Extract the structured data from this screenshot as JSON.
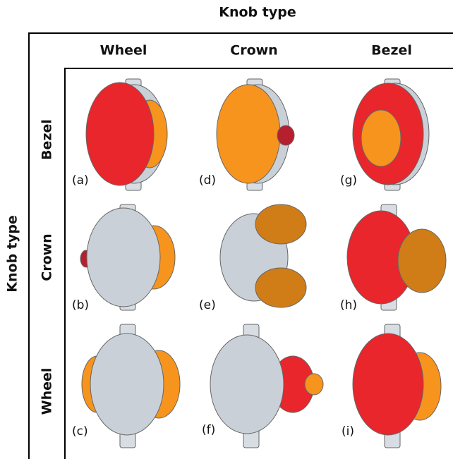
{
  "title_top": "Knob type",
  "title_left": "Knob type",
  "columns": [
    "Wheel",
    "Crown",
    "Bezel"
  ],
  "rows": [
    "Bezel",
    "Crown",
    "Wheel"
  ],
  "cells": [
    [
      "(a)",
      "(d)",
      "(g)"
    ],
    [
      "(b)",
      "(e)",
      "(h)"
    ],
    [
      "(c)",
      "(f)",
      "(i)"
    ]
  ]
}
